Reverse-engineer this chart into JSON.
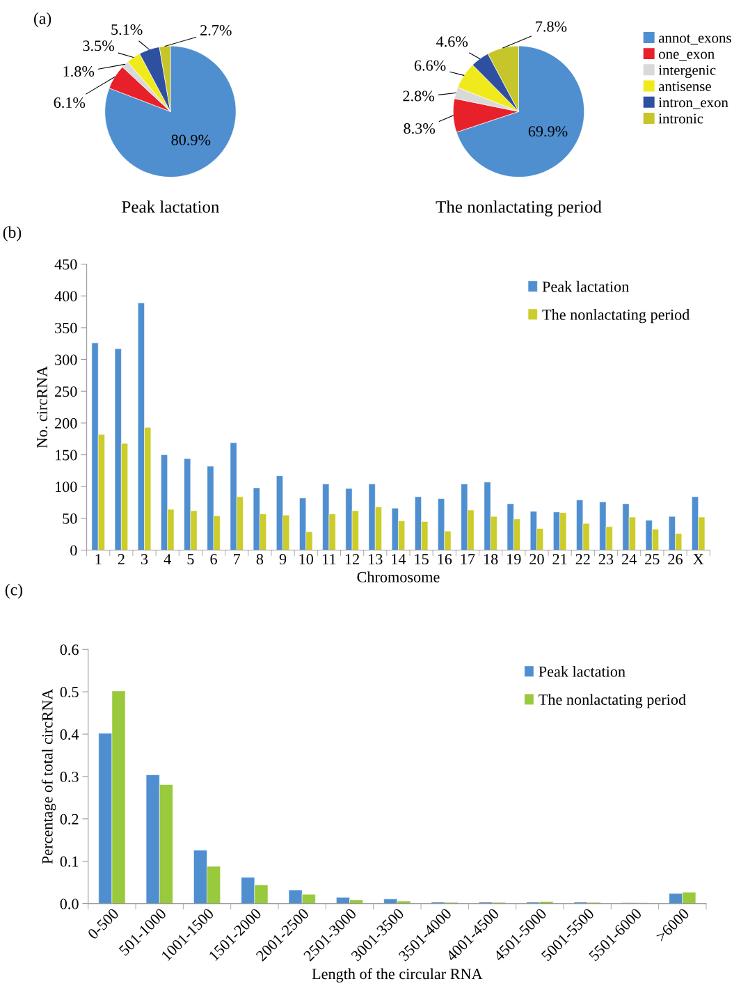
{
  "chart_data": [
    {
      "type": "pie",
      "title": "Peak lactation",
      "annotations": [
        "(a)"
      ],
      "categories": [
        null,
        null,
        null,
        null,
        null,
        null
      ],
      "values": [
        80.9,
        6.1,
        1.8,
        3.5,
        5.1,
        2.7
      ],
      "value_labels": [
        "80.9%",
        "6.1%",
        "1.8%",
        "3.5%",
        "5.1%",
        "2.7%"
      ],
      "colors": [
        "#4f8fd0",
        "#e8202a",
        "#d9d9d9",
        "#f0ea1c",
        "#2f4fa0",
        "#c6c52a"
      ]
    },
    {
      "type": "pie",
      "title": "The nonlactating period",
      "legend": "right",
      "categories": [
        "annot_exons",
        "one_exon",
        "intergenic",
        "antisense",
        "intron_exon",
        "intronic"
      ],
      "values": [
        69.9,
        8.3,
        2.8,
        6.6,
        4.6,
        7.8
      ],
      "value_labels": [
        "69.9%",
        "8.3%",
        "2.8%",
        "6.6%",
        "4.6%",
        "7.8%"
      ],
      "colors": [
        "#4f8fd0",
        "#e8202a",
        "#d9d9d9",
        "#f0ea1c",
        "#2f4fa0",
        "#c6c52a"
      ]
    },
    {
      "type": "bar",
      "annotations": [
        "(b)"
      ],
      "xlabel": "Chromosome",
      "ylabel": "No. circRNA",
      "legend": "top right",
      "ylim": [
        0,
        450
      ],
      "yticks": [
        0,
        50,
        100,
        150,
        200,
        250,
        300,
        350,
        400,
        450
      ],
      "categories": [
        "1",
        "2",
        "3",
        "4",
        "5",
        "6",
        "7",
        "8",
        "9",
        "10",
        "11",
        "12",
        "13",
        "14",
        "15",
        "16",
        "17",
        "18",
        "19",
        "20",
        "21",
        "22",
        "23",
        "24",
        "25",
        "26",
        "X"
      ],
      "series": [
        {
          "name": "Peak lactation",
          "color": "#4f8fd0",
          "values": [
            326,
            317,
            389,
            150,
            144,
            132,
            169,
            98,
            117,
            82,
            104,
            97,
            104,
            66,
            84,
            81,
            104,
            107,
            73,
            61,
            60,
            79,
            76,
            73,
            47,
            53,
            84
          ]
        },
        {
          "name": "The nonlactating period",
          "color": "#cccc2a",
          "values": [
            182,
            168,
            193,
            64,
            62,
            54,
            84,
            57,
            55,
            29,
            57,
            62,
            68,
            46,
            45,
            30,
            63,
            53,
            49,
            34,
            59,
            42,
            37,
            52,
            33,
            26,
            52
          ]
        }
      ]
    },
    {
      "type": "bar",
      "annotations": [
        "(c)"
      ],
      "xlabel": "Length of the circular RNA",
      "ylabel": "Percentage of total circRNA",
      "legend": "top right",
      "ylim": [
        0,
        0.6
      ],
      "yticks": [
        {
          "value": 0,
          "label": "0.0"
        },
        {
          "value": 0.1,
          "label": "0.1"
        },
        {
          "value": 0.2,
          "label": "0.2"
        },
        {
          "value": 0.3,
          "label": "0.3"
        },
        {
          "value": 0.4,
          "label": "0.4"
        },
        {
          "value": 0.5,
          "label": "0.5"
        },
        {
          "value": 0.6,
          "label": "0.6"
        }
      ],
      "categories": [
        "0-500",
        "501-1000",
        "1001-1500",
        "1501-2000",
        "2001-2500",
        "2501-3000",
        "3001-3500",
        "3501-4000",
        "4001-4500",
        "4501-5000",
        "5001-5500",
        "5501-6000",
        ">6000"
      ],
      "series": [
        {
          "name": "Peak lactation",
          "color": "#4f8fd0",
          "values": [
            0.402,
            0.304,
            0.126,
            0.062,
            0.032,
            0.015,
            0.011,
            0.004,
            0.004,
            0.004,
            0.004,
            0.002,
            0.024
          ]
        },
        {
          "name": "The nonlactating period",
          "color": "#99c93c",
          "values": [
            0.502,
            0.281,
            0.088,
            0.044,
            0.022,
            0.009,
            0.006,
            0.003,
            0.003,
            0.005,
            0.003,
            0.002,
            0.027
          ]
        }
      ]
    }
  ]
}
